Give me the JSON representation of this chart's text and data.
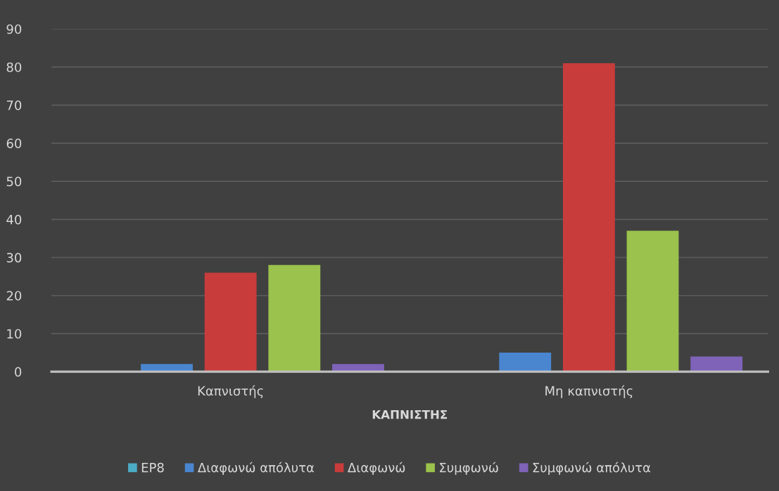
{
  "chart_data": {
    "type": "bar",
    "xlabel": "ΚΑΠΝΙΣΤΗΣ",
    "categories": [
      "Καπνιστής",
      "Μη καπνιστής"
    ],
    "series": [
      {
        "name": "EP8",
        "color": "#4bacc6",
        "values": [
          null,
          null
        ]
      },
      {
        "name": "Διαφωνώ απόλυτα",
        "color": "#4a86d0",
        "values": [
          2,
          5
        ]
      },
      {
        "name": "Διαφωνώ",
        "color": "#c83c3c",
        "values": [
          26,
          81
        ]
      },
      {
        "name": "Συμφωνώ",
        "color": "#9bc24c",
        "values": [
          28,
          37
        ]
      },
      {
        "name": "Συμφωνώ απόλυτα",
        "color": "#7f63b8",
        "values": [
          2,
          4
        ]
      }
    ],
    "ylim": [
      0,
      90
    ],
    "yticks": [
      0,
      10,
      20,
      30,
      40,
      50,
      60,
      70,
      80,
      90
    ],
    "grid": "y",
    "legend": "bottom"
  }
}
